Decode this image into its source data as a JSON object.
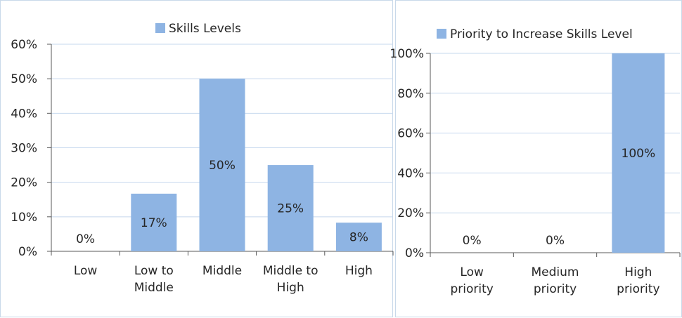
{
  "chart_data": [
    {
      "type": "bar",
      "legend": "Skills Levels",
      "categories": [
        [
          "Low"
        ],
        [
          "Low to",
          "Middle"
        ],
        [
          "Middle"
        ],
        [
          "Middle to",
          "High"
        ],
        [
          "High"
        ]
      ],
      "values": [
        0,
        16.7,
        50,
        25,
        8.3
      ],
      "data_labels": [
        "0%",
        "17%",
        "50%",
        "25%",
        "8%"
      ],
      "yticks": [
        "0%",
        "10%",
        "20%",
        "30%",
        "40%",
        "50%",
        "60%"
      ],
      "ylim": [
        0,
        60
      ],
      "bar_color": "#8eb4e3",
      "legend_position": "top",
      "grid": true
    },
    {
      "type": "bar",
      "legend": "Priority to Increase Skills Level",
      "categories": [
        [
          "Low",
          "priority"
        ],
        [
          "Medium",
          "priority"
        ],
        [
          "High",
          "priority"
        ]
      ],
      "values": [
        0,
        0,
        100
      ],
      "data_labels": [
        "0%",
        "0%",
        "100%"
      ],
      "yticks": [
        "0%",
        "20%",
        "40%",
        "60%",
        "80%",
        "100%"
      ],
      "ylim": [
        0,
        100
      ],
      "bar_color": "#8eb4e3",
      "legend_position": "top",
      "grid": true
    }
  ]
}
